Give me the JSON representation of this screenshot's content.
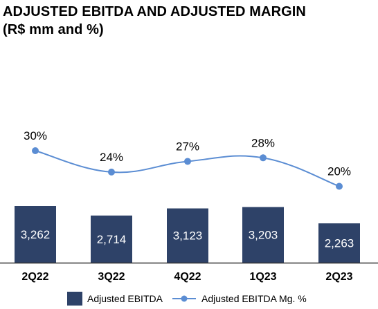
{
  "title_line1": "ADJUSTED EBITDA AND ADJUSTED MARGIN",
  "title_line2": "(R$ mm and %)",
  "colors": {
    "bar": "#2E4268",
    "line": "#5B8DD3",
    "axis": "#333333"
  },
  "chart_data": {
    "type": "bar",
    "title": "ADJUSTED EBITDA AND ADJUSTED MARGIN",
    "subtitle": "(R$ mm and %)",
    "categories": [
      "2Q22",
      "3Q22",
      "4Q22",
      "1Q23",
      "2Q23"
    ],
    "series": [
      {
        "name": "Adjusted EBITDA",
        "type": "bar",
        "values": [
          3262,
          2714,
          3123,
          3203,
          2263
        ],
        "labels": [
          "3,262",
          "2,714",
          "3,123",
          "3,203",
          "2,263"
        ]
      },
      {
        "name": "Adjusted EBITDA Mg. %",
        "type": "line",
        "values": [
          30,
          24,
          27,
          28,
          20
        ],
        "labels": [
          "30%",
          "24%",
          "27%",
          "28%",
          "20%"
        ]
      }
    ],
    "legend": "bottom",
    "grid": false
  }
}
